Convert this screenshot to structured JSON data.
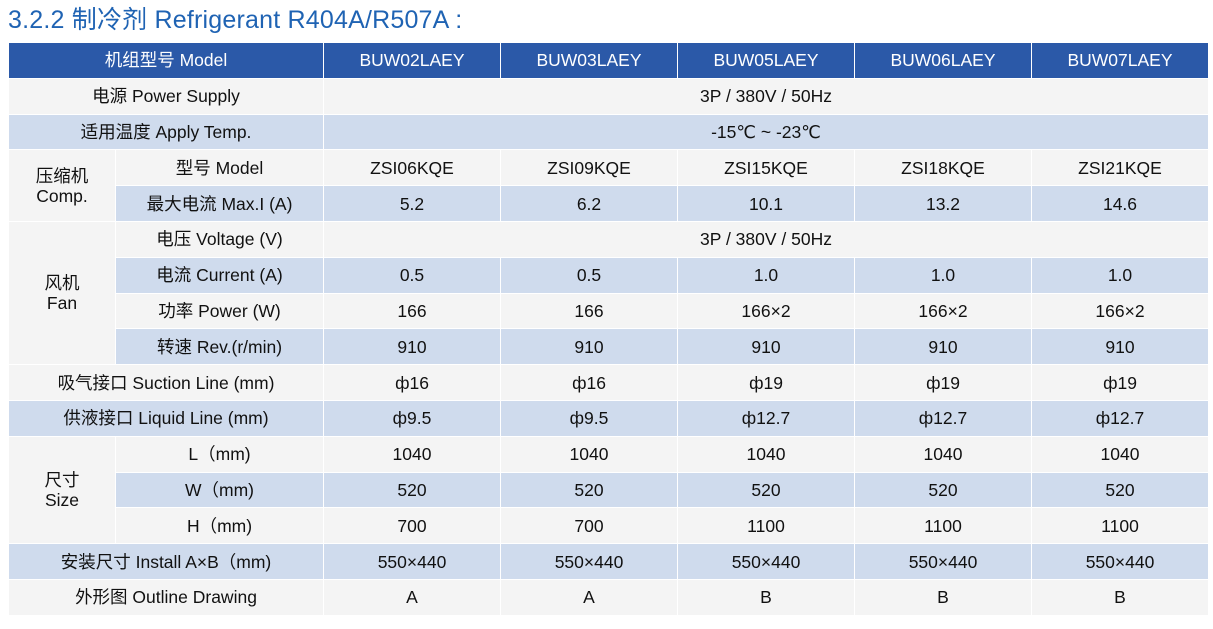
{
  "title": "3.2.2 制冷剂 Refrigerant R404A/R507A :",
  "colors": {
    "title": "#1f63b3",
    "header_bg": "#2b59a8",
    "header_text": "#ffffff",
    "band_bg": "#cfdbed",
    "plain_bg": "#f4f4f4"
  },
  "header": {
    "model_label": "机组型号 Model",
    "models": [
      "BUW02LAEY",
      "BUW03LAEY",
      "BUW05LAEY",
      "BUW06LAEY",
      "BUW07LAEY"
    ]
  },
  "power_supply": {
    "label": "电源 Power Supply",
    "value": "3P / 380V / 50Hz"
  },
  "apply_temp": {
    "label": "适用温度 Apply Temp.",
    "value": "-15℃ ~ -23℃"
  },
  "compressor": {
    "group_cn": "压缩机",
    "group_en": "Comp.",
    "model": {
      "label": "型号 Model",
      "values": [
        "ZSI06KQE",
        "ZSI09KQE",
        "ZSI15KQE",
        "ZSI18KQE",
        "ZSI21KQE"
      ]
    },
    "max_current": {
      "label": "最大电流 Max.I (A)",
      "values": [
        "5.2",
        "6.2",
        "10.1",
        "13.2",
        "14.6"
      ]
    }
  },
  "fan": {
    "group_cn": "风机",
    "group_en": "Fan",
    "voltage": {
      "label": "电压 Voltage (V)",
      "value": "3P / 380V / 50Hz"
    },
    "current": {
      "label": "电流 Current (A)",
      "values": [
        "0.5",
        "0.5",
        "1.0",
        "1.0",
        "1.0"
      ]
    },
    "power": {
      "label": "功率 Power (W)",
      "values": [
        "166",
        "166",
        "166×2",
        "166×2",
        "166×2"
      ]
    },
    "speed": {
      "label": "转速 Rev.(r/min)",
      "values": [
        "910",
        "910",
        "910",
        "910",
        "910"
      ]
    }
  },
  "suction_line": {
    "label": "吸气接口 Suction Line (mm)",
    "values": [
      "ф16",
      "ф16",
      "ф19",
      "ф19",
      "ф19"
    ]
  },
  "liquid_line": {
    "label": "供液接口 Liquid Line (mm)",
    "values": [
      "ф9.5",
      "ф9.5",
      "ф12.7",
      "ф12.7",
      "ф12.7"
    ]
  },
  "size": {
    "group_cn": "尺寸",
    "group_en": "Size",
    "length": {
      "label": "L（mm)",
      "values": [
        "1040",
        "1040",
        "1040",
        "1040",
        "1040"
      ]
    },
    "width": {
      "label": "W（mm)",
      "values": [
        "520",
        "520",
        "520",
        "520",
        "520"
      ]
    },
    "height": {
      "label": "H（mm)",
      "values": [
        "700",
        "700",
        "1100",
        "1100",
        "1100"
      ]
    }
  },
  "install_size": {
    "label": "安装尺寸 Install A×B（mm)",
    "values": [
      "550×440",
      "550×440",
      "550×440",
      "550×440",
      "550×440"
    ]
  },
  "outline": {
    "label": "外形图 Outline Drawing",
    "values": [
      "A",
      "A",
      "B",
      "B",
      "B"
    ]
  }
}
